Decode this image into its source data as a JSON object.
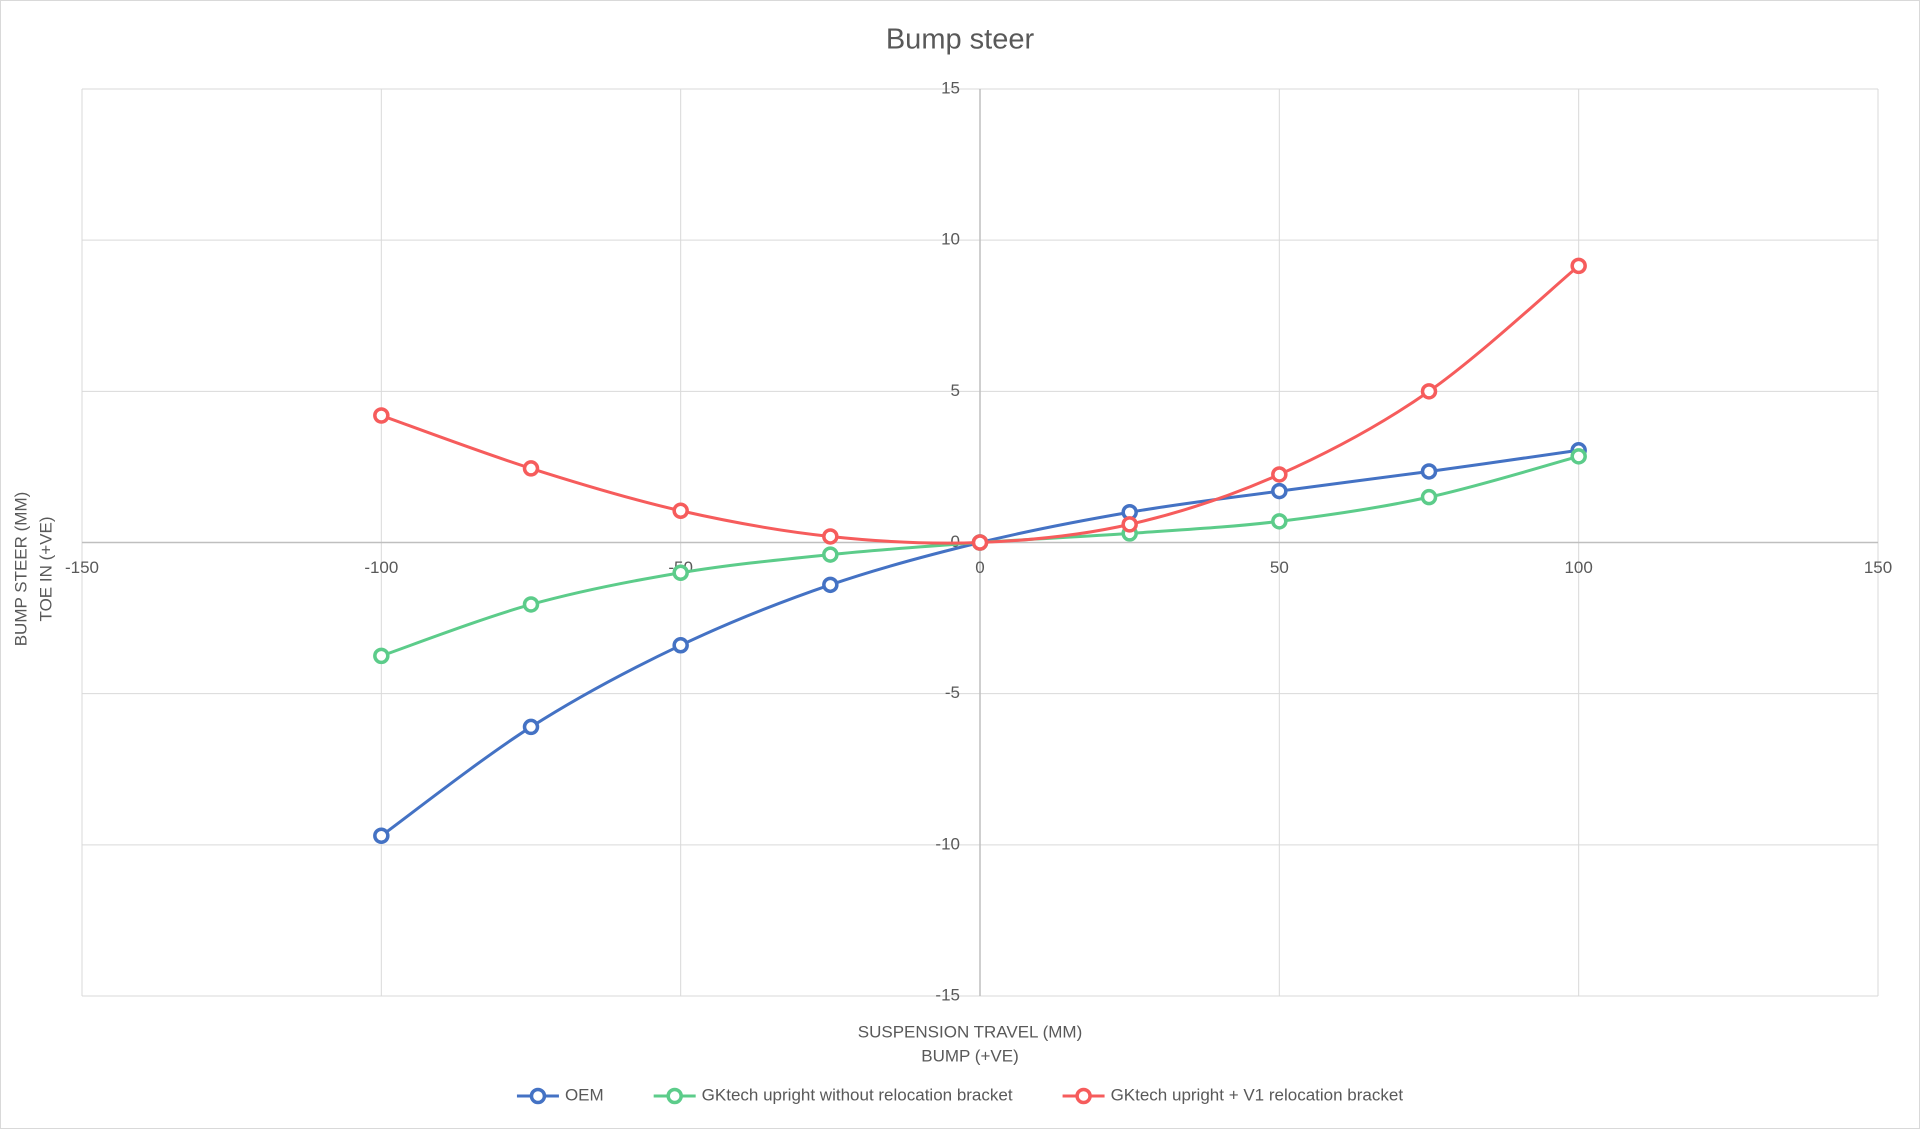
{
  "chart_data": {
    "type": "scatter",
    "title": "Bump steer",
    "x_label": [
      "SUSPENSION TRAVEL (MM)",
      "BUMP (+VE)"
    ],
    "y_label": [
      "BUMP STEER (MM)",
      "TOE IN (+VE)"
    ],
    "x": [
      -100,
      -75,
      -50,
      -25,
      0,
      25,
      50,
      75,
      100
    ],
    "series": [
      {
        "name": "OEM",
        "color": "#4472c4",
        "values": [
          -9.7,
          -6.1,
          -3.4,
          -1.4,
          0,
          1.0,
          1.7,
          2.35,
          3.05
        ]
      },
      {
        "name": "GKtech upright without relocation bracket",
        "color": "#5ccc8a",
        "values": [
          -3.75,
          -2.05,
          -1.0,
          -0.4,
          0,
          0.3,
          0.7,
          1.5,
          2.85
        ]
      },
      {
        "name": "GKtech upright + V1 relocation bracket",
        "color": "#f65c5c",
        "values": [
          4.2,
          2.45,
          1.05,
          0.2,
          0,
          0.6,
          2.25,
          5.0,
          9.15
        ]
      }
    ],
    "xlim": [
      -150,
      150
    ],
    "xticks": [
      -150,
      -100,
      -50,
      0,
      50,
      100,
      150
    ],
    "ylim": [
      -15,
      15
    ],
    "yticks": [
      -15,
      -10,
      -5,
      0,
      5,
      10,
      15
    ],
    "grid": true,
    "smooth": true,
    "legend": "bottom"
  }
}
